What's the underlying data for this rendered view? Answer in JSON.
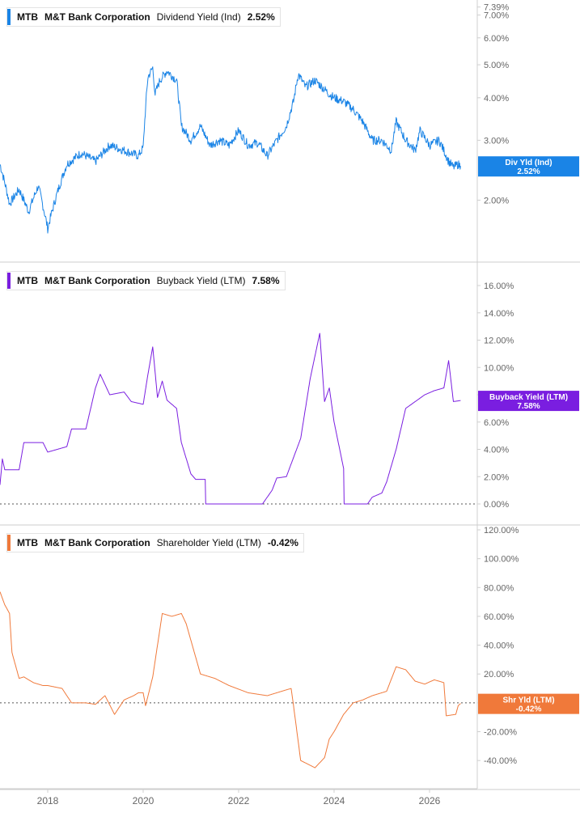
{
  "colors": {
    "dividend": "#1a84e6",
    "buyback": "#7a1ee0",
    "shareholder": "#f0793a",
    "axis_text": "#666666",
    "separator": "#cccccc"
  },
  "chart_data": [
    {
      "type": "line",
      "legend": {
        "ticker": "MTB",
        "company": "M&T Bank Corporation",
        "metric": "Dividend Yield (Ind)",
        "value": "2.52%"
      },
      "tag": {
        "line1": "Div Yld (Ind)",
        "line2": "2.52%"
      },
      "scale": "log",
      "ylim": [
        1.5,
        7.5
      ],
      "y_ticks": [
        2,
        3,
        4,
        5,
        6,
        7,
        7.39
      ],
      "y_tick_labels": [
        "2.00%",
        "3.00%",
        "4.00%",
        "5.00%",
        "6.00%",
        "7.00%",
        "7.39%"
      ],
      "last_value": 2.52,
      "x": [
        2017.0,
        2017.2,
        2017.4,
        2017.6,
        2017.8,
        2018.0,
        2018.2,
        2018.4,
        2018.7,
        2019.0,
        2019.3,
        2019.6,
        2019.9,
        2020.0,
        2020.1,
        2020.2,
        2020.25,
        2020.35,
        2020.5,
        2020.7,
        2020.8,
        2021.0,
        2021.2,
        2021.4,
        2021.6,
        2021.8,
        2022.0,
        2022.2,
        2022.4,
        2022.6,
        2022.8,
        2023.0,
        2023.15,
        2023.25,
        2023.4,
        2023.6,
        2023.75,
        2023.9,
        2024.0,
        2024.2,
        2024.4,
        2024.6,
        2024.8,
        2025.0,
        2025.2,
        2025.3,
        2025.5,
        2025.7,
        2025.8,
        2026.0,
        2026.2,
        2026.4,
        2026.5,
        2026.6,
        2026.65
      ],
      "y": [
        2.55,
        1.95,
        2.15,
        1.85,
        2.2,
        1.65,
        2.1,
        2.55,
        2.75,
        2.6,
        2.9,
        2.8,
        2.7,
        2.85,
        4.6,
        4.9,
        4.1,
        4.5,
        4.8,
        4.5,
        3.3,
        3.0,
        3.3,
        2.9,
        3.0,
        2.9,
        3.2,
        2.9,
        2.95,
        2.7,
        3.0,
        3.3,
        3.9,
        4.7,
        4.3,
        4.5,
        4.3,
        4.1,
        4.0,
        3.9,
        3.7,
        3.4,
        3.0,
        3.0,
        2.8,
        3.4,
        3.0,
        2.8,
        3.2,
        2.9,
        3.0,
        2.6,
        2.5,
        2.55,
        2.52
      ]
    },
    {
      "type": "line",
      "legend": {
        "ticker": "MTB",
        "company": "M&T Bank Corporation",
        "metric": "Buyback Yield (LTM)",
        "value": "7.58%"
      },
      "tag": {
        "line1": "Buyback Yield (LTM)",
        "line2": "7.58%"
      },
      "scale": "linear",
      "ylim": [
        0,
        16
      ],
      "y_ticks": [
        0,
        2,
        4,
        6,
        8,
        10,
        12,
        14,
        16
      ],
      "y_tick_labels": [
        "0.00%",
        "2.00%",
        "4.00%",
        "6.00%",
        "8.00%",
        "10.00%",
        "12.00%",
        "14.00%",
        "16.00%"
      ],
      "last_value": 7.58,
      "zero_line": true,
      "x": [
        2017.0,
        2017.05,
        2017.1,
        2017.4,
        2017.5,
        2017.9,
        2018.0,
        2018.4,
        2018.5,
        2018.8,
        2019.0,
        2019.1,
        2019.3,
        2019.6,
        2019.75,
        2020.0,
        2020.1,
        2020.2,
        2020.3,
        2020.4,
        2020.5,
        2020.7,
        2020.8,
        2021.0,
        2021.1,
        2021.3,
        2021.31,
        2022.0,
        2022.5,
        2022.7,
        2022.8,
        2023.0,
        2023.3,
        2023.5,
        2023.7,
        2023.8,
        2023.9,
        2024.0,
        2024.2,
        2024.21,
        2024.7,
        2024.8,
        2025.0,
        2025.1,
        2025.3,
        2025.5,
        2025.7,
        2025.9,
        2026.1,
        2026.3,
        2026.4,
        2026.5,
        2026.65
      ],
      "y": [
        1.4,
        3.3,
        2.5,
        2.5,
        4.5,
        4.5,
        3.8,
        4.2,
        5.5,
        5.5,
        8.5,
        9.5,
        8.0,
        8.2,
        7.5,
        7.3,
        9.5,
        11.5,
        7.8,
        9.0,
        7.6,
        7.0,
        4.5,
        2.2,
        1.8,
        1.8,
        0.0,
        0.0,
        0.0,
        1.0,
        1.9,
        2.0,
        4.8,
        9.2,
        12.5,
        7.5,
        8.5,
        6.0,
        2.6,
        0.0,
        0.0,
        0.5,
        0.8,
        1.6,
        4.0,
        7.0,
        7.5,
        8.0,
        8.3,
        8.5,
        10.5,
        7.5,
        7.58
      ]
    },
    {
      "type": "line",
      "legend": {
        "ticker": "MTB",
        "company": "M&T Bank Corporation",
        "metric": "Shareholder Yield (LTM)",
        "value": "-0.42%"
      },
      "tag": {
        "line1": "Shr Yld (LTM)",
        "line2": "-0.42%"
      },
      "scale": "linear",
      "ylim": [
        -50,
        120
      ],
      "y_ticks": [
        -40,
        -20,
        0,
        20,
        40,
        60,
        80,
        100,
        120
      ],
      "y_tick_labels": [
        "-40.00%",
        "-20.00%",
        "0.00%",
        "20.00%",
        "40.00%",
        "60.00%",
        "80.00%",
        "100.00%",
        "120.00%"
      ],
      "last_value": -0.42,
      "zero_line": true,
      "x": [
        2017.0,
        2017.1,
        2017.2,
        2017.25,
        2017.4,
        2017.5,
        2017.7,
        2017.9,
        2018.0,
        2018.3,
        2018.5,
        2018.8,
        2019.0,
        2019.2,
        2019.4,
        2019.6,
        2019.8,
        2019.9,
        2020.0,
        2020.05,
        2020.2,
        2020.4,
        2020.6,
        2020.8,
        2020.9,
        2021.2,
        2021.5,
        2021.8,
        2022.2,
        2022.6,
        2023.0,
        2023.1,
        2023.15,
        2023.3,
        2023.6,
        2023.8,
        2023.9,
        2024.0,
        2024.2,
        2024.4,
        2024.6,
        2024.8,
        2025.1,
        2025.3,
        2025.5,
        2025.7,
        2025.9,
        2026.1,
        2026.3,
        2026.35,
        2026.55,
        2026.6,
        2026.65
      ],
      "y": [
        77,
        68,
        62,
        35,
        17,
        18,
        14,
        12,
        12,
        10,
        0,
        0,
        -1,
        5,
        -8,
        2,
        5,
        7,
        7,
        -2,
        18,
        62,
        60,
        62,
        55,
        20,
        17,
        12,
        7,
        5,
        9,
        10,
        -2,
        -40,
        -45,
        -38,
        -25,
        -20,
        -8,
        0,
        2,
        5,
        8,
        25,
        23,
        15,
        13,
        16,
        14,
        -9,
        -8,
        -2,
        -0.42
      ]
    }
  ],
  "x_axis": {
    "ticks": [
      2018,
      2020,
      2022,
      2024,
      2026
    ],
    "tick_labels": [
      "2018",
      "2020",
      "2022",
      "2024",
      "2026"
    ],
    "xlim": [
      2017.0,
      2027.0
    ]
  }
}
